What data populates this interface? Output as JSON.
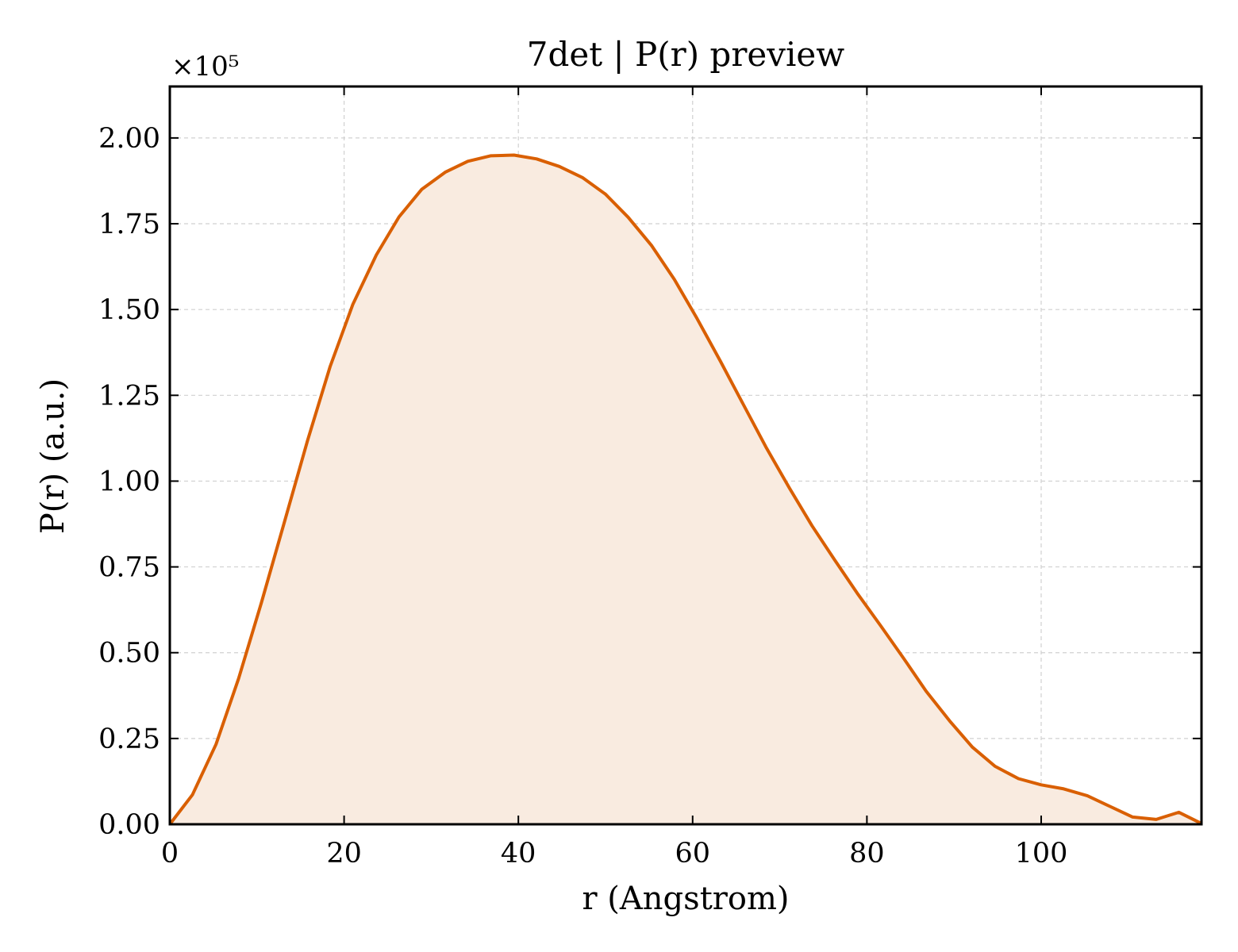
{
  "chart_data": {
    "type": "area",
    "title": "7det | P(r) preview",
    "xlabel": "r (Angstrom)",
    "ylabel": "P(r) (a.u.)",
    "y_multiplier_label": "×10⁵",
    "xlim": [
      0,
      118.4
    ],
    "ylim": [
      0,
      2.15
    ],
    "xticks": [
      0,
      20,
      40,
      60,
      80,
      100
    ],
    "xtick_labels": [
      "0",
      "20",
      "40",
      "60",
      "80",
      "100"
    ],
    "yticks": [
      0,
      0.25,
      0.5,
      0.75,
      1.0,
      1.25,
      1.5,
      1.75,
      2.0
    ],
    "ytick_labels": [
      "0.00",
      "0.25",
      "0.50",
      "0.75",
      "1.00",
      "1.25",
      "1.50",
      "1.75",
      "2.00"
    ],
    "grid": true,
    "line_color": "#d95f02",
    "fill_color": "#f9ebe0",
    "series": [
      {
        "x": [
          0,
          2.6,
          5.3,
          7.9,
          10.5,
          13.2,
          15.8,
          18.4,
          21.0,
          23.7,
          26.3,
          28.9,
          31.6,
          34.2,
          36.8,
          39.5,
          42.1,
          44.7,
          47.4,
          50.0,
          52.6,
          55.3,
          57.9,
          60.5,
          63.2,
          65.8,
          68.4,
          71.1,
          73.7,
          76.3,
          78.9,
          81.6,
          84.2,
          86.8,
          89.5,
          92.1,
          94.7,
          97.4,
          100.0,
          102.6,
          105.3,
          107.9,
          110.5,
          113.2,
          115.8,
          118.4
        ],
        "values": [
          0.0,
          0.086,
          0.233,
          0.425,
          0.645,
          0.885,
          1.118,
          1.334,
          1.515,
          1.659,
          1.77,
          1.85,
          1.9,
          1.932,
          1.948,
          1.95,
          1.939,
          1.917,
          1.884,
          1.836,
          1.769,
          1.686,
          1.588,
          1.474,
          1.349,
          1.224,
          1.1,
          0.98,
          0.87,
          0.77,
          0.673,
          0.578,
          0.484,
          0.388,
          0.301,
          0.225,
          0.169,
          0.133,
          0.115,
          0.103,
          0.083,
          0.052,
          0.021,
          0.014,
          0.035,
          0.002
        ]
      }
    ]
  }
}
